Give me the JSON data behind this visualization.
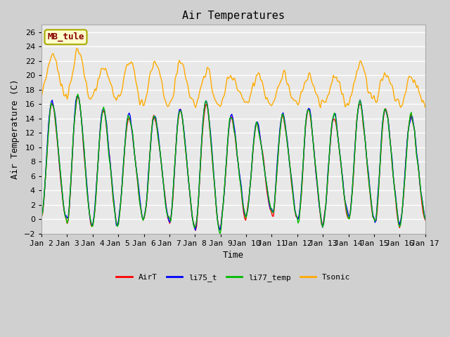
{
  "title": "Air Temperatures",
  "xlabel": "Time",
  "ylabel": "Air Temperature (C)",
  "ylim": [
    -2,
    27
  ],
  "xlim_min": 0,
  "xlim_max": 360,
  "annotation": "MB_tule",
  "legend_labels": [
    "AirT",
    "li75_t",
    "li77_temp",
    "Tsonic"
  ],
  "color_airt": "#ff0000",
  "color_li75": "#0000ff",
  "color_li77": "#00bb00",
  "color_tsonic": "#ffaa00",
  "xtick_labels": [
    "Jan 2",
    "Jan 3",
    "Jan 4",
    "Jan 5",
    "Jan 6",
    "Jan 7",
    "Jan 8",
    "Jan 9",
    "Jan 10",
    "Jan 11",
    "Jan 12",
    "Jan 13",
    "Jan 14",
    "Jan 15",
    "Jan 16",
    "Jan 17"
  ],
  "xtick_positions": [
    0,
    24,
    48,
    72,
    96,
    120,
    144,
    168,
    192,
    216,
    240,
    264,
    288,
    312,
    336,
    360
  ],
  "fig_bg_color": "#d0d0d0",
  "plot_bg_color": "#e8e8e8",
  "grid_color": "#ffffff",
  "title_fontsize": 11,
  "axis_label_fontsize": 9,
  "tick_fontsize": 8,
  "line_width": 1.0,
  "annotation_fg": "#880000",
  "annotation_bg": "#ffffcc",
  "annotation_border": "#aaaa00"
}
